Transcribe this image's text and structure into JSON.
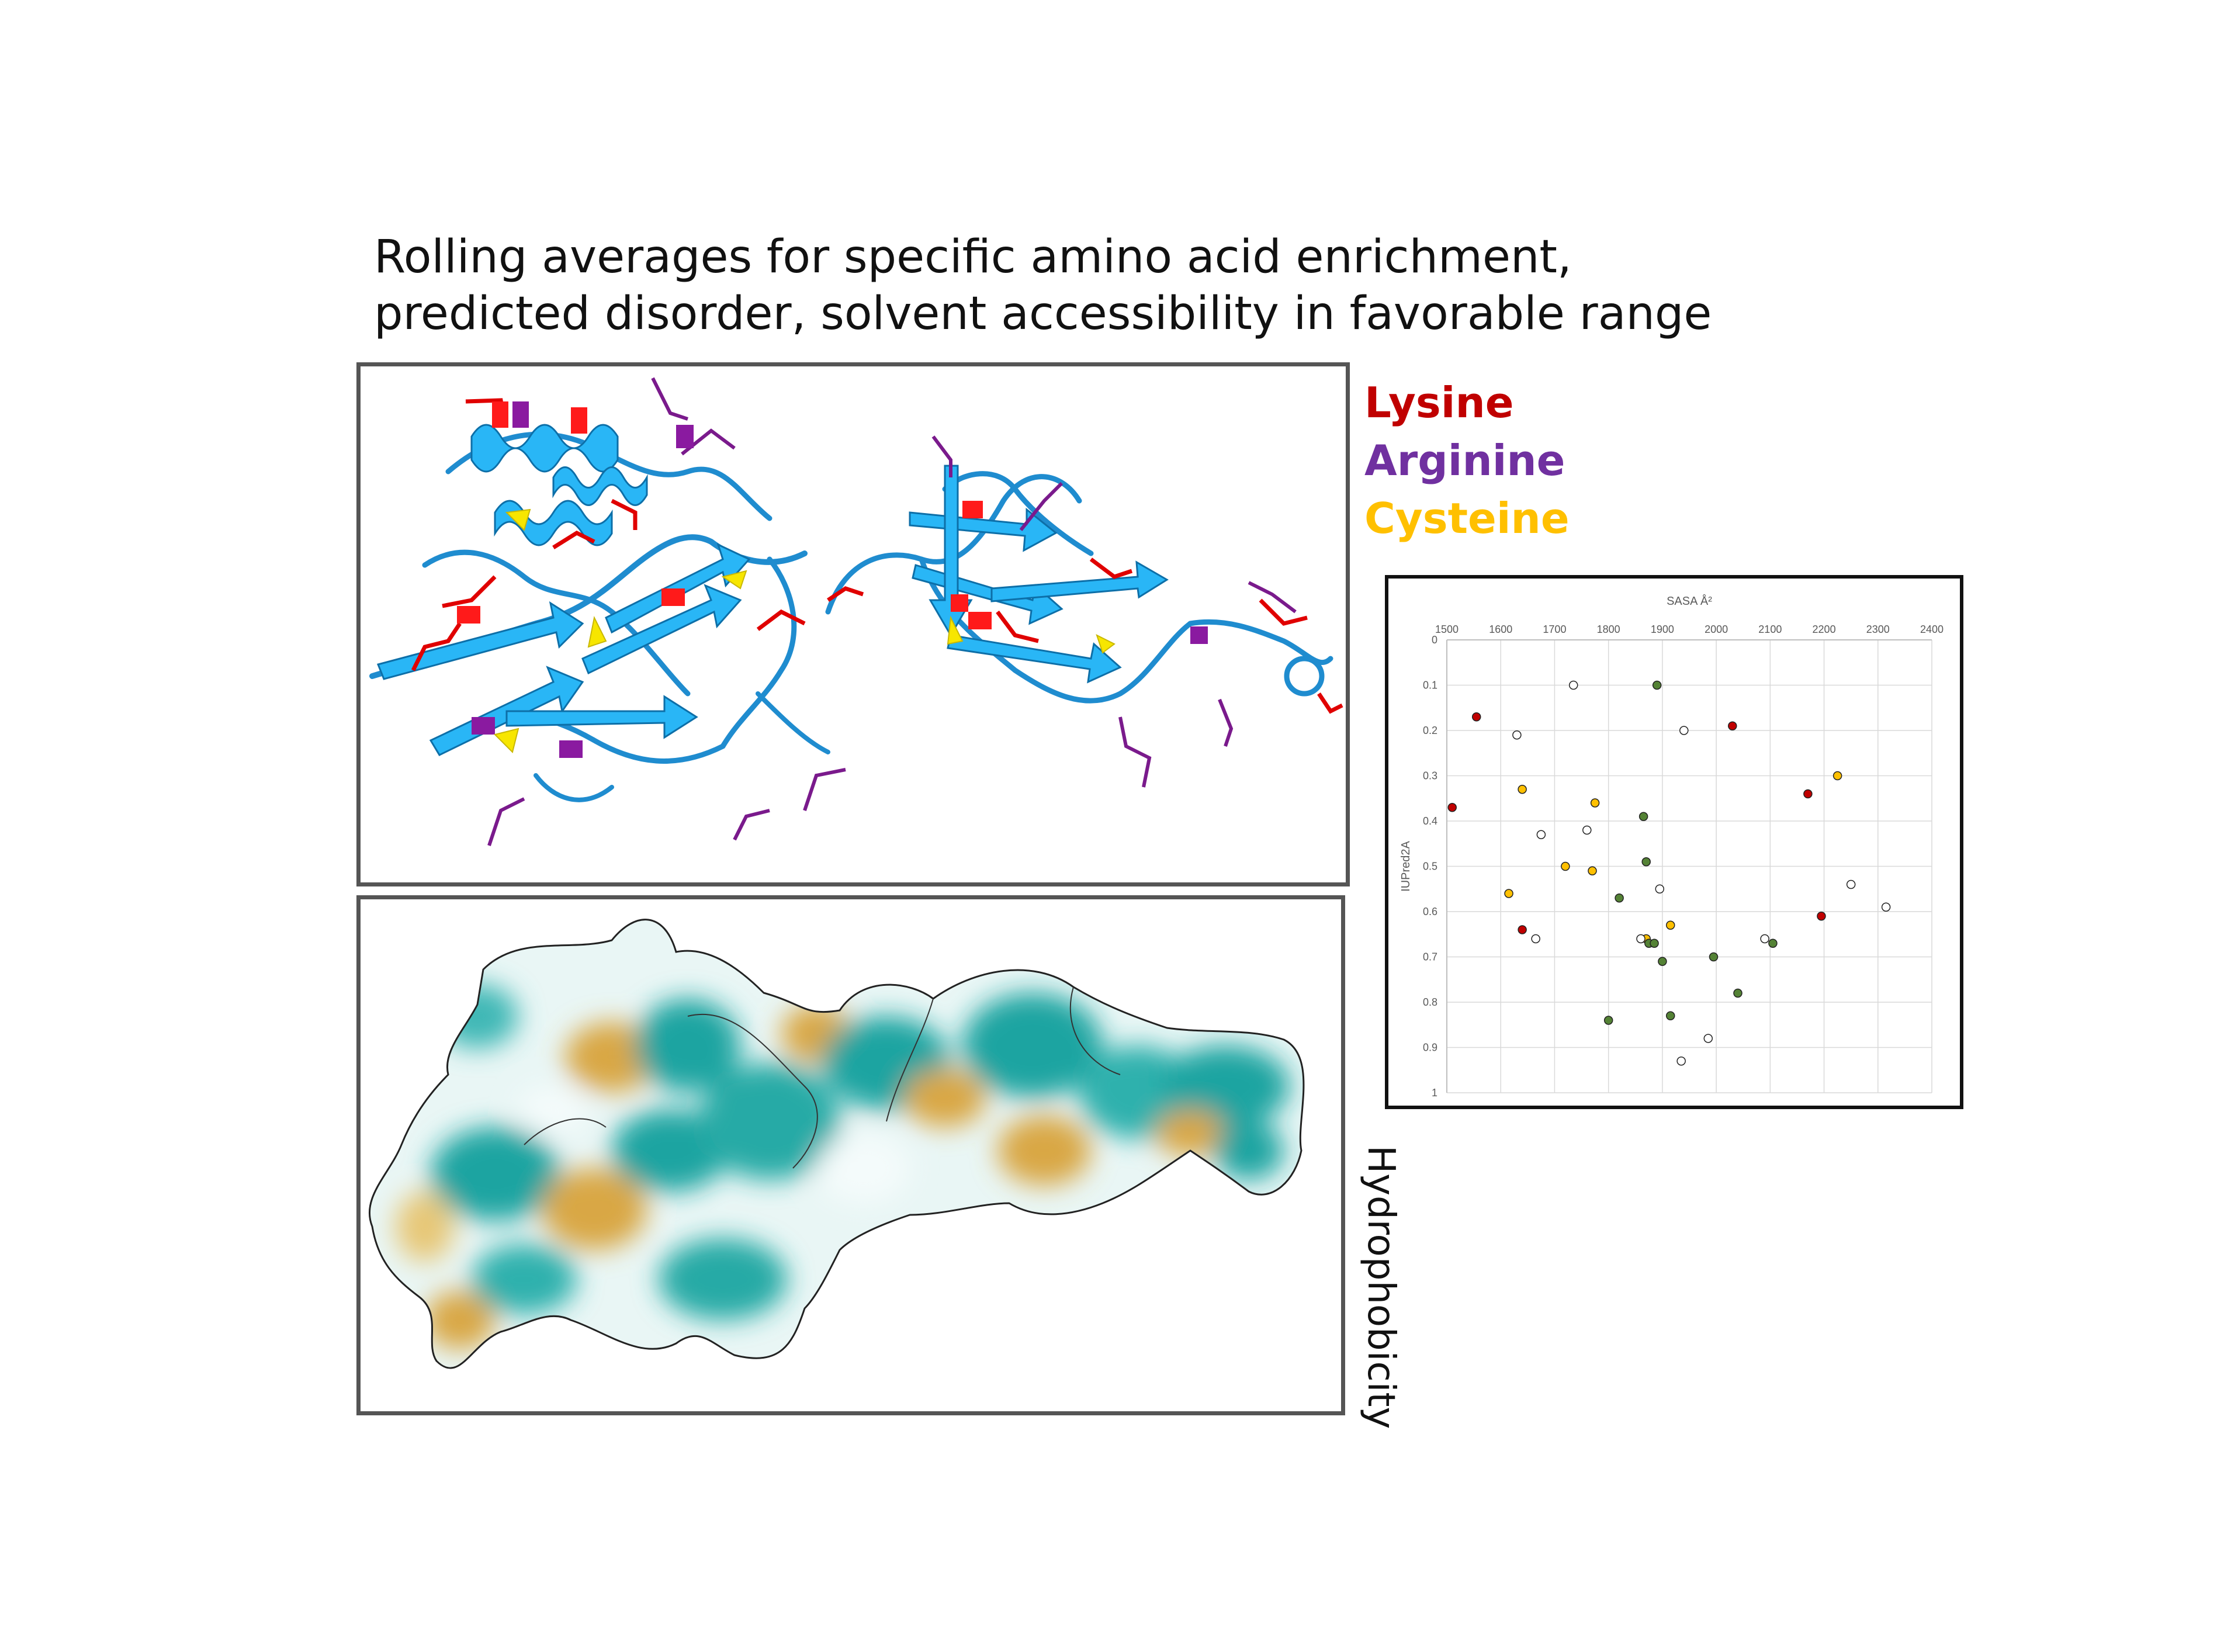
{
  "headline": {
    "line1": "Rolling averages for specific amino acid enrichment,",
    "line2": "predicted disorder, solvent accessibility in favorable range"
  },
  "legend": {
    "items": [
      {
        "label": "Lysine",
        "color": "#c00000"
      },
      {
        "label": "Arginine",
        "color": "#7030a0"
      },
      {
        "label": "Cysteine",
        "color": "#ffc000"
      }
    ]
  },
  "side_label": "Hydrophobicity",
  "panels": {
    "ribbon": {
      "icon": "protein-ribbon-structure-icon"
    },
    "surface": {
      "icon": "hydrophobicity-surface-icon"
    }
  },
  "chart_data": {
    "type": "scatter",
    "title": "",
    "xlabel": "SASA Å²",
    "ylabel": "IUPred2A",
    "xlim": [
      1500,
      2400
    ],
    "ylim": [
      0,
      1
    ],
    "y_inverted": true,
    "x_axis_position": "top",
    "grid": true,
    "x_ticks": [
      1500,
      1600,
      1700,
      1800,
      1900,
      2000,
      2100,
      2200,
      2300,
      2400
    ],
    "y_ticks": [
      0,
      0.1,
      0.2,
      0.3,
      0.4,
      0.5,
      0.6,
      0.7,
      0.8,
      0.9,
      1
    ],
    "series": [
      {
        "color": "#c00000",
        "points": [
          [
            1510,
            0.37
          ],
          [
            1555,
            0.17
          ],
          [
            1640,
            0.64
          ],
          [
            2030,
            0.19
          ],
          [
            2170,
            0.34
          ],
          [
            2195,
            0.61
          ]
        ]
      },
      {
        "color": "#ffc000",
        "points": [
          [
            1615,
            0.56
          ],
          [
            1640,
            0.33
          ],
          [
            1720,
            0.5
          ],
          [
            1770,
            0.51
          ],
          [
            1775,
            0.36
          ],
          [
            1870,
            0.66
          ],
          [
            1915,
            0.63
          ],
          [
            2225,
            0.3
          ]
        ]
      },
      {
        "color": "#548235",
        "points": [
          [
            1800,
            0.84
          ],
          [
            1820,
            0.57
          ],
          [
            1865,
            0.39
          ],
          [
            1870,
            0.49
          ],
          [
            1875,
            0.67
          ],
          [
            1885,
            0.67
          ],
          [
            1890,
            0.1
          ],
          [
            1900,
            0.71
          ],
          [
            1915,
            0.83
          ],
          [
            1995,
            0.7
          ],
          [
            2040,
            0.78
          ],
          [
            2105,
            0.67
          ]
        ]
      },
      {
        "color": "#ffffff",
        "points": [
          [
            1630,
            0.21
          ],
          [
            1665,
            0.66
          ],
          [
            1675,
            0.43
          ],
          [
            1735,
            0.1
          ],
          [
            1760,
            0.42
          ],
          [
            1860,
            0.66
          ],
          [
            1895,
            0.55
          ],
          [
            1935,
            0.93
          ],
          [
            1940,
            0.2
          ],
          [
            1985,
            0.88
          ],
          [
            2090,
            0.66
          ],
          [
            2250,
            0.54
          ],
          [
            2315,
            0.59
          ]
        ]
      }
    ]
  }
}
